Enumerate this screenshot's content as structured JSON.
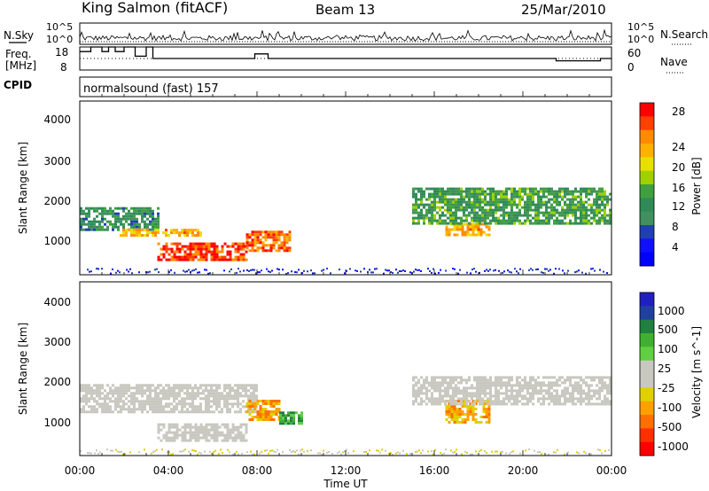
{
  "header": {
    "station": "King Salmon (fitACF)",
    "beam": "Beam 13",
    "date": "25/Mar/2010"
  },
  "top_panels": {
    "nsky_label": "N.Sky",
    "nsearch_label": "N.Search",
    "noise_ticks": [
      "10^5",
      "10^0"
    ],
    "freq_label_1": "Freq.",
    "freq_label_2": "[MHz]",
    "freq_ticks": [
      "18",
      "8"
    ],
    "nave_label": "Nave",
    "nave_ticks": [
      "60",
      "0"
    ],
    "cpid_label": "CPID",
    "cpid_value": "normalsound (fast) 157"
  },
  "power_panel": {
    "ylabel": "Slant Range [km]",
    "yticks": [
      "4000",
      "3000",
      "2000",
      "1000"
    ],
    "colorbar_label": "Power [dB]",
    "colorbar_ticks": [
      "28",
      "24",
      "20",
      "16",
      "12",
      "8",
      "4"
    ],
    "colorbar_colors": [
      "#ff0000",
      "#ff4000",
      "#ff8c00",
      "#ffb000",
      "#e8e000",
      "#a0d000",
      "#40a040",
      "#2e8b57",
      "#409060",
      "#2040b0",
      "#1010ff",
      "#0000ff"
    ]
  },
  "velocity_panel": {
    "ylabel": "Slant Range [km]",
    "yticks": [
      "4000",
      "3000",
      "2000",
      "1000"
    ],
    "colorbar_label": "Velocity [m s^-1]",
    "colorbar_ticks": [
      "1000",
      "500",
      "100",
      "25",
      "-25",
      "-100",
      "-500",
      "-1000"
    ],
    "colorbar_colors": [
      "#2020c0",
      "#2040a0",
      "#208040",
      "#40b030",
      "#60d040",
      "#c8c8c0",
      "#c8c8c0",
      "#e0d000",
      "#ffa000",
      "#ff7000",
      "#ff3000",
      "#ff0000"
    ]
  },
  "xaxis": {
    "label": "Time UT",
    "ticks": [
      "00:00",
      "04:00",
      "08:00",
      "12:00",
      "16:00",
      "20:00",
      "00:00"
    ]
  },
  "chart_data": [
    {
      "type": "line",
      "title": "N.Sky / N.Search",
      "x": [
        0,
        24
      ],
      "ylim_labels": [
        "10^0",
        "10^5"
      ],
      "note": "noise levels"
    },
    {
      "type": "line",
      "title": "Freq. [MHz] / Nave",
      "x_hours": [
        0,
        0.5,
        1.0,
        1.3,
        1.6,
        2.0,
        2.5,
        3.0,
        3.3,
        7.9,
        8.5,
        21.5,
        23.5,
        24
      ],
      "freq_mhz": [
        16,
        18,
        16,
        18,
        16,
        18,
        14,
        18,
        13,
        15,
        13,
        12,
        13,
        13
      ],
      "freq_ylim": [
        8,
        18
      ],
      "nave_ylim": [
        0,
        60
      ]
    },
    {
      "type": "heatmap",
      "title": "Power [dB]",
      "x_label": "Time UT",
      "y_label": "Slant Range [km]",
      "xlim_hours": [
        0,
        24
      ],
      "ylim_km": [
        180,
        4600
      ],
      "clim": [
        0,
        30
      ],
      "regions": [
        {
          "t0": 0,
          "t1": 3.5,
          "r0": 1300,
          "r1": 1900,
          "level": 10
        },
        {
          "t0": 1.8,
          "t1": 5.5,
          "r0": 1150,
          "r1": 1350,
          "level": 22
        },
        {
          "t0": 3.5,
          "t1": 7.5,
          "r0": 550,
          "r1": 1000,
          "level": 28
        },
        {
          "t0": 7.5,
          "t1": 9.5,
          "r0": 800,
          "r1": 1300,
          "level": 26
        },
        {
          "t0": 16.5,
          "t1": 18.5,
          "r0": 1200,
          "r1": 1500,
          "level": 22
        },
        {
          "t0": 15,
          "t1": 24,
          "r0": 1500,
          "r1": 2400,
          "level": 12
        }
      ]
    },
    {
      "type": "heatmap",
      "title": "Velocity [m s^-1]",
      "x_label": "Time UT",
      "y_label": "Slant Range [km]",
      "xlim_hours": [
        0,
        24
      ],
      "ylim_km": [
        180,
        4600
      ],
      "clim": [
        -1000,
        1000
      ],
      "regions": [
        {
          "t0": 0,
          "t1": 8,
          "r0": 1300,
          "r1": 2000,
          "velocity": 0
        },
        {
          "t0": 3.5,
          "t1": 7.5,
          "r0": 550,
          "r1": 1000,
          "velocity": 0
        },
        {
          "t0": 7.5,
          "t1": 9,
          "r0": 1100,
          "r1": 1600,
          "velocity": -300
        },
        {
          "t0": 9,
          "t1": 10,
          "r0": 1000,
          "r1": 1300,
          "velocity": 150
        },
        {
          "t0": 16.5,
          "t1": 18.5,
          "r0": 1000,
          "r1": 1600,
          "velocity": -200
        },
        {
          "t0": 15,
          "t1": 24,
          "r0": 1500,
          "r1": 2200,
          "velocity": 0
        }
      ]
    }
  ]
}
